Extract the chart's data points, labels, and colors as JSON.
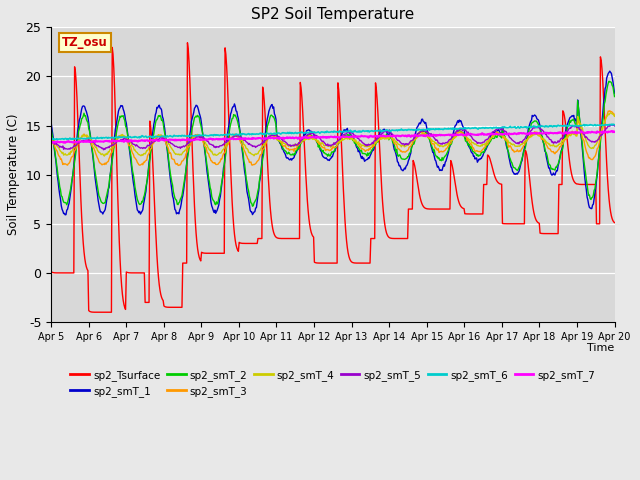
{
  "title": "SP2 Soil Temperature",
  "xlabel": "Time",
  "ylabel": "Soil Temperature (C)",
  "ylim": [
    -5,
    25
  ],
  "tick_labels": [
    "Apr 5",
    "Apr 6",
    "Apr 7",
    "Apr 8",
    "Apr 9",
    "Apr 10",
    "Apr 11",
    "Apr 12",
    "Apr 13",
    "Apr 14",
    "Apr 15",
    "Apr 16",
    "Apr 17",
    "Apr 18",
    "Apr 19",
    "Apr 20"
  ],
  "tz_label": "TZ_osu",
  "series_colors": {
    "sp2_Tsurface": "#ff0000",
    "sp2_smT_1": "#0000cc",
    "sp2_smT_2": "#00cc00",
    "sp2_smT_3": "#ff9900",
    "sp2_smT_4": "#cccc00",
    "sp2_smT_5": "#9900cc",
    "sp2_smT_6": "#00cccc",
    "sp2_smT_7": "#ff00ff"
  },
  "background_color": "#d8d8d8",
  "fig_facecolor": "#e8e8e8",
  "yticks": [
    -5,
    0,
    5,
    10,
    15,
    20,
    25
  ]
}
